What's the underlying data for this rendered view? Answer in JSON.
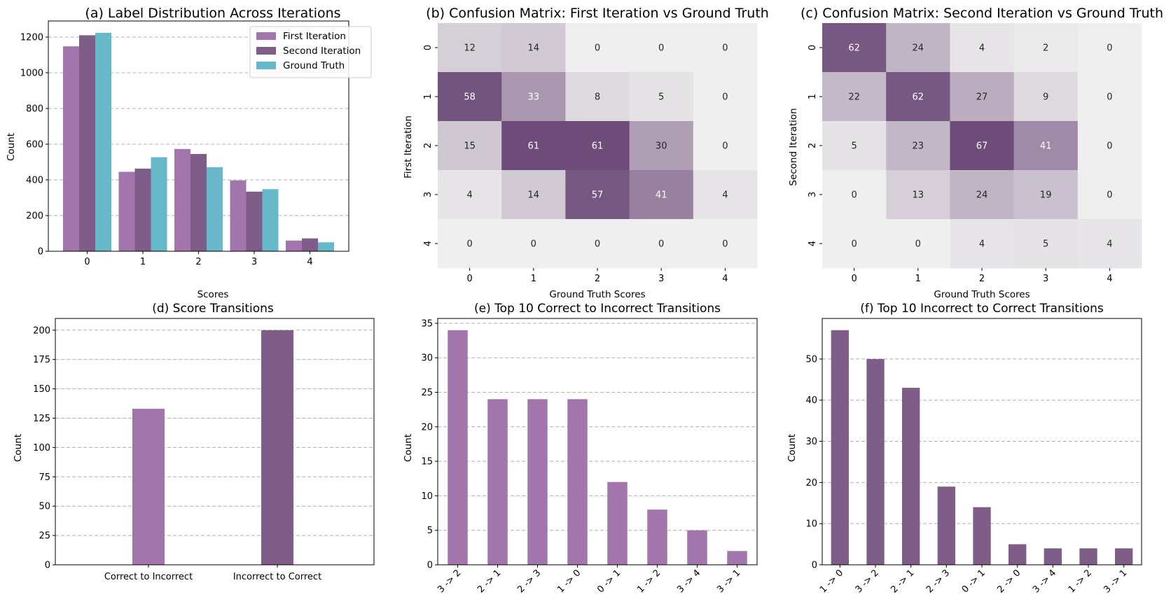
{
  "colors": {
    "first": "#a276ad",
    "second": "#7e5d88",
    "ground": "#67b8c8",
    "heat_low": "#efefef",
    "heat_high": "#6d4c79"
  },
  "chart_data": [
    {
      "id": "a",
      "type": "bar",
      "title": "(a) Label Distribution Across Iterations",
      "xlabel": "Scores",
      "ylabel": "Count",
      "categories": [
        "0",
        "1",
        "2",
        "3",
        "4"
      ],
      "series": [
        {
          "name": "First Iteration",
          "values": [
            1148,
            445,
            573,
            397,
            60
          ]
        },
        {
          "name": "Second Iteration",
          "values": [
            1210,
            463,
            545,
            334,
            72
          ]
        },
        {
          "name": "Ground Truth",
          "values": [
            1224,
            527,
            471,
            348,
            50
          ]
        }
      ],
      "ylim": [
        0,
        1290
      ],
      "yticks": [
        0,
        200,
        400,
        600,
        800,
        1000,
        1200
      ],
      "legend": "top-right",
      "grid": true
    },
    {
      "id": "b",
      "type": "heatmap",
      "title": "(b) Confusion Matrix: First Iteration vs Ground Truth",
      "xlabel": "Ground Truth Scores",
      "ylabel": "First Iteration",
      "x_labels": [
        "0",
        "1",
        "2",
        "3",
        "4"
      ],
      "y_labels": [
        "0",
        "1",
        "2",
        "3",
        "4"
      ],
      "matrix": [
        [
          12,
          14,
          0,
          0,
          0
        ],
        [
          58,
          33,
          8,
          5,
          0
        ],
        [
          15,
          61,
          61,
          30,
          0
        ],
        [
          4,
          14,
          57,
          41,
          4
        ],
        [
          0,
          0,
          0,
          0,
          0
        ]
      ]
    },
    {
      "id": "c",
      "type": "heatmap",
      "title": "(c) Confusion Matrix: Second Iteration vs Ground Truth",
      "xlabel": "Ground Truth Scores",
      "ylabel": "Second Iteration",
      "x_labels": [
        "0",
        "1",
        "2",
        "3",
        "4"
      ],
      "y_labels": [
        "0",
        "1",
        "2",
        "3",
        "4"
      ],
      "matrix": [
        [
          62,
          24,
          4,
          2,
          0
        ],
        [
          22,
          62,
          27,
          9,
          0
        ],
        [
          5,
          23,
          67,
          41,
          0
        ],
        [
          0,
          13,
          24,
          19,
          0
        ],
        [
          0,
          0,
          4,
          5,
          4
        ]
      ]
    },
    {
      "id": "d",
      "type": "bar",
      "title": "(d) Score Transitions",
      "xlabel": "",
      "ylabel": "Count",
      "categories": [
        "Correct to Incorrect",
        "Incorrect to Correct"
      ],
      "values": [
        133,
        200
      ],
      "bar_colors": [
        "first",
        "second"
      ],
      "ylim": [
        0,
        210
      ],
      "yticks": [
        0,
        25,
        50,
        75,
        100,
        125,
        150,
        175,
        200
      ],
      "grid": true
    },
    {
      "id": "e",
      "type": "bar",
      "title": "(e) Top 10 Correct to Incorrect Transitions",
      "xlabel": "",
      "ylabel": "Count",
      "categories": [
        "3 -> 2",
        "2 -> 1",
        "2 -> 3",
        "1 -> 0",
        "0 -> 1",
        "1 -> 2",
        "3 -> 4",
        "3 -> 1"
      ],
      "values": [
        34,
        24,
        24,
        24,
        12,
        8,
        5,
        2
      ],
      "bar_color": "first",
      "ylim": [
        0,
        35.7
      ],
      "yticks": [
        0,
        5,
        10,
        15,
        20,
        25,
        30,
        35
      ],
      "grid": true
    },
    {
      "id": "f",
      "type": "bar",
      "title": "(f) Top 10 Incorrect to Correct Transitions",
      "xlabel": "",
      "ylabel": "Count",
      "categories": [
        "1 -> 0",
        "3 -> 2",
        "2 -> 1",
        "2 -> 3",
        "0 -> 1",
        "2 -> 0",
        "3 -> 4",
        "1 -> 2",
        "3 -> 1"
      ],
      "values": [
        57,
        50,
        43,
        19,
        14,
        5,
        4,
        4,
        4
      ],
      "bar_color": "second",
      "ylim": [
        0,
        59.85
      ],
      "yticks": [
        0,
        10,
        20,
        30,
        40,
        50
      ],
      "grid": true
    }
  ]
}
